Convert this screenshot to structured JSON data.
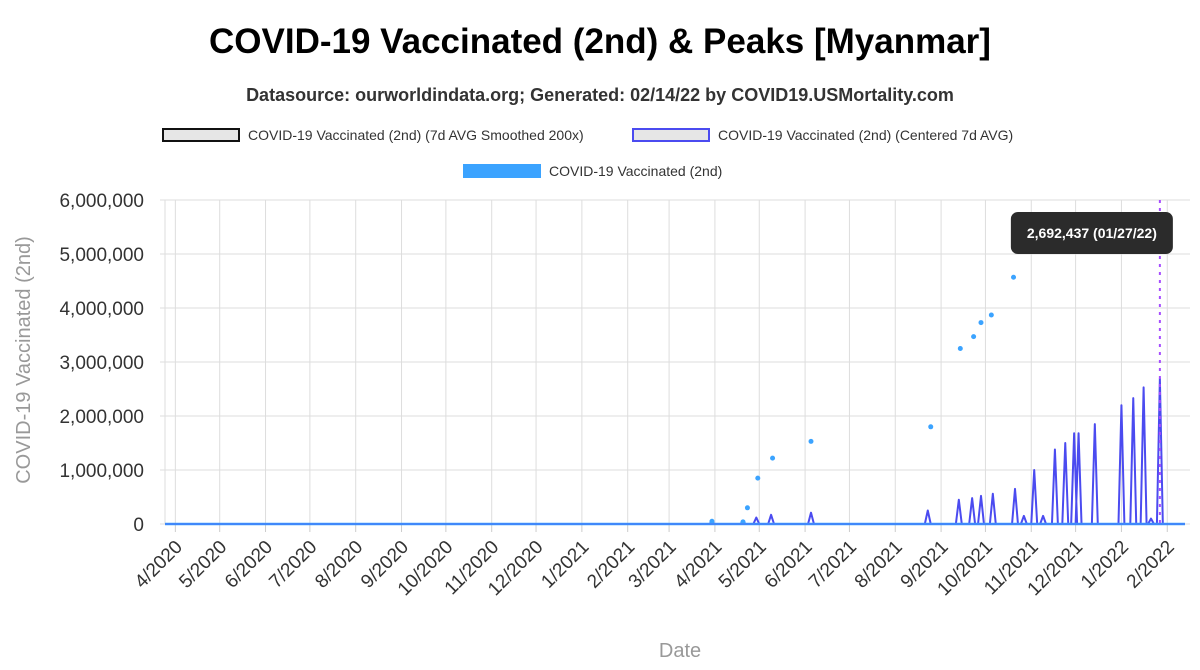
{
  "title": "COVID-19 Vaccinated (2nd) & Peaks [Myanmar]",
  "subtitle": "Datasource: ourworldindata.org; Generated: 02/14/22 by COVID19.USMortality.com",
  "legend": [
    {
      "label": "COVID-19 Vaccinated (2nd) (7d AVG Smoothed 200x)",
      "color": "#111111"
    },
    {
      "label": "COVID-19 Vaccinated (2nd) (Centered 7d AVG)",
      "color": "#4b4bf0"
    },
    {
      "label": "COVID-19 Vaccinated (2nd)",
      "color": "#3ba3ff"
    }
  ],
  "tooltip": "2,692,437 (01/27/22)",
  "chart_data": {
    "type": "line",
    "xlabel": "Date",
    "ylabel": "COVID-19 Vaccinated (2nd)",
    "ylim": [
      0,
      6000000
    ],
    "yticks": [
      0,
      1000000,
      2000000,
      3000000,
      4000000,
      5000000,
      6000000
    ],
    "ytick_labels": [
      "0",
      "1,000,000",
      "2,000,000",
      "3,000,000",
      "4,000,000",
      "5,000,000",
      "6,000,000"
    ],
    "xlim": [
      "2020-03-25",
      "2022-02-13"
    ],
    "xticks": [
      "2020-04-01",
      "2020-05-01",
      "2020-06-01",
      "2020-07-01",
      "2020-08-01",
      "2020-09-01",
      "2020-10-01",
      "2020-11-01",
      "2020-12-01",
      "2021-01-01",
      "2021-02-01",
      "2021-03-01",
      "2021-04-01",
      "2021-05-01",
      "2021-06-01",
      "2021-07-01",
      "2021-08-01",
      "2021-09-01",
      "2021-10-01",
      "2021-11-01",
      "2021-12-01",
      "2022-01-01",
      "2022-02-01"
    ],
    "xtick_labels": [
      "4/2020",
      "5/2020",
      "6/2020",
      "7/2020",
      "8/2020",
      "9/2020",
      "10/2020",
      "11/2020",
      "12/2020",
      "1/2021",
      "2/2021",
      "3/2021",
      "4/2021",
      "5/2021",
      "6/2021",
      "7/2021",
      "8/2021",
      "9/2021",
      "10/2021",
      "11/2021",
      "12/2021",
      "1/2022",
      "2/2022"
    ],
    "grid": true,
    "legend_position": "top",
    "peak_marker": {
      "date": "2022-01-27",
      "value": 2692437,
      "color": "#a64dff"
    },
    "series": [
      {
        "name": "COVID-19 Vaccinated (2nd) (7d AVG Smoothed 200x)",
        "color": "#111111",
        "points": [
          [
            "2020-03-25",
            0
          ],
          [
            "2022-02-13",
            0
          ]
        ]
      },
      {
        "name": "COVID-19 Vaccinated (2nd) (Centered 7d AVG)",
        "color": "#4b4bf0",
        "spikes": [
          [
            "2021-03-30",
            30000
          ],
          [
            "2021-04-20",
            40000
          ],
          [
            "2021-04-29",
            120000
          ],
          [
            "2021-05-09",
            170000
          ],
          [
            "2021-06-05",
            210000
          ],
          [
            "2021-08-23",
            250000
          ],
          [
            "2021-09-13",
            450000
          ],
          [
            "2021-09-22",
            480000
          ],
          [
            "2021-09-28",
            520000
          ],
          [
            "2021-10-06",
            560000
          ],
          [
            "2021-10-21",
            650000
          ],
          [
            "2021-10-27",
            150000
          ],
          [
            "2021-11-03",
            1000000
          ],
          [
            "2021-11-09",
            150000
          ],
          [
            "2021-11-17",
            1380000
          ],
          [
            "2021-11-24",
            1500000
          ],
          [
            "2021-11-30",
            1680000
          ],
          [
            "2021-12-03",
            1680000
          ],
          [
            "2021-12-14",
            1850000
          ],
          [
            "2022-01-01",
            2200000
          ],
          [
            "2022-01-09",
            2330000
          ],
          [
            "2022-01-16",
            2530000
          ],
          [
            "2022-01-21",
            100000
          ],
          [
            "2022-01-27",
            2692437
          ]
        ]
      },
      {
        "name": "COVID-19 Vaccinated (2nd)",
        "color": "#3ba3ff",
        "baseline_range": [
          "2020-03-25",
          "2022-02-13"
        ],
        "points": [
          [
            "2021-03-30",
            50000
          ],
          [
            "2021-04-20",
            40000
          ],
          [
            "2021-04-23",
            300000
          ],
          [
            "2021-04-30",
            850000
          ],
          [
            "2021-05-10",
            1220000
          ],
          [
            "2021-06-05",
            1530000
          ],
          [
            "2021-08-25",
            1800000
          ],
          [
            "2021-09-14",
            3250000
          ],
          [
            "2021-09-23",
            3470000
          ],
          [
            "2021-09-28",
            3730000
          ],
          [
            "2021-10-05",
            3870000
          ],
          [
            "2021-10-20",
            4570000
          ]
        ]
      }
    ]
  }
}
